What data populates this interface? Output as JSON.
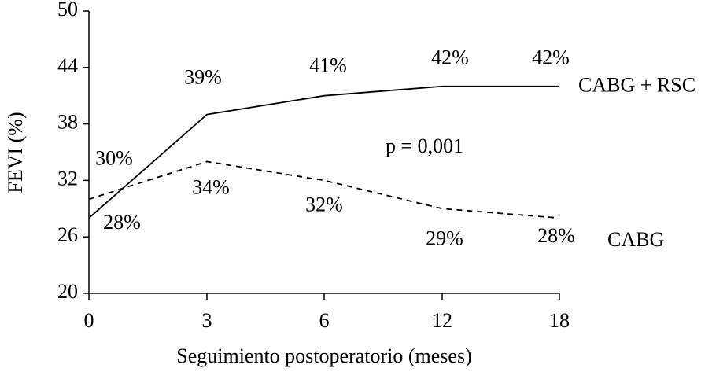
{
  "chart_data": {
    "type": "line",
    "x_label": "Seguimiento postoperatorio (meses)",
    "y_label": "FEVI (%)",
    "annotation": "p = 0,001",
    "categories": [
      "0",
      "3",
      "6",
      "12",
      "18"
    ],
    "series": [
      {
        "name": "CABG + RSC",
        "color": "#000000",
        "dash": false,
        "values": [
          28,
          39,
          41,
          42,
          42
        ],
        "value_labels": [
          "28%",
          "39%",
          "41%",
          "42%",
          "42%"
        ]
      },
      {
        "name": "CABG",
        "color": "#000000",
        "dash": true,
        "values": [
          30,
          34,
          32,
          29,
          28
        ],
        "value_labels": [
          "30%",
          "34%",
          "32%",
          "29%",
          "28%"
        ]
      }
    ],
    "ylim": [
      20,
      50
    ],
    "yticks": [
      20,
      26,
      32,
      38,
      44,
      50
    ]
  }
}
